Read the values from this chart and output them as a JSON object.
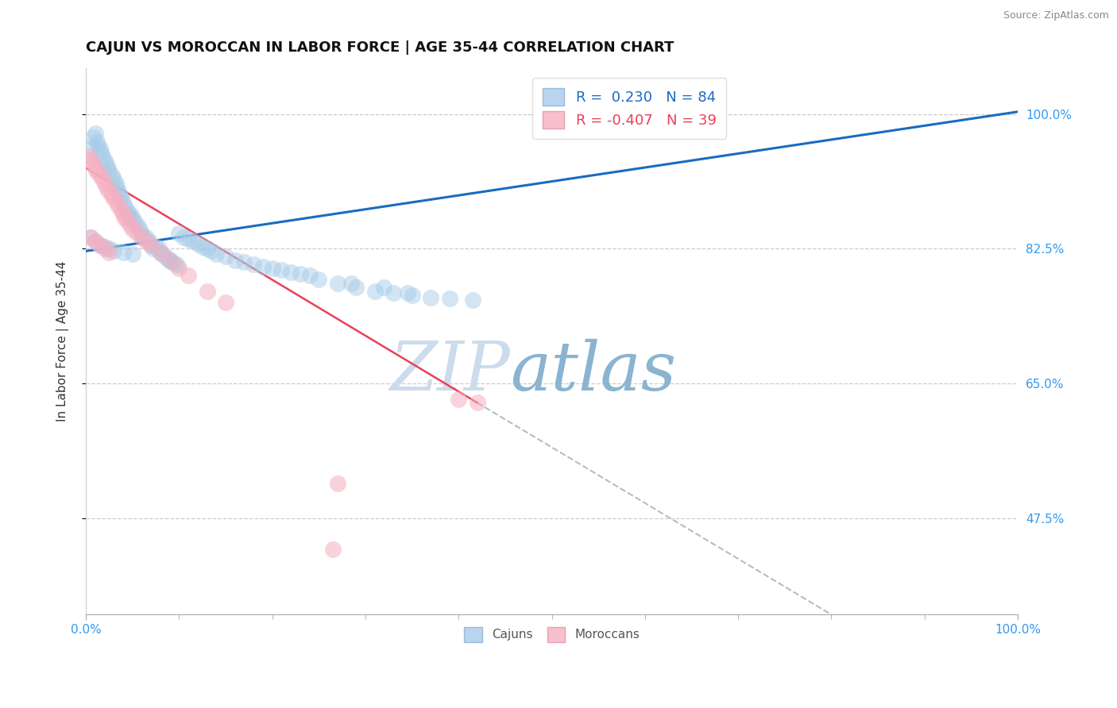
{
  "title": "CAJUN VS MOROCCAN IN LABOR FORCE | AGE 35-44 CORRELATION CHART",
  "source_text": "Source: ZipAtlas.com",
  "ylabel": "In Labor Force | Age 35-44",
  "xlim": [
    0.0,
    1.0
  ],
  "ylim": [
    0.35,
    1.06
  ],
  "yticks": [
    0.475,
    0.65,
    0.825,
    1.0
  ],
  "ytick_labels": [
    "47.5%",
    "65.0%",
    "82.5%",
    "100.0%"
  ],
  "legend_r_cajun": "0.230",
  "legend_n_cajun": "84",
  "legend_r_moroccan": "-0.407",
  "legend_n_moroccan": "39",
  "cajun_color": "#a8cce8",
  "moroccan_color": "#f5afc0",
  "cajun_line_color": "#1a6bbf",
  "moroccan_line_color": "#e8405a",
  "background_color": "#ffffff",
  "grid_color": "#cccccc",
  "title_fontsize": 13,
  "axis_label_fontsize": 11,
  "tick_label_color": "#3399ee",
  "cajun_line": [
    [
      0.0,
      0.822
    ],
    [
      1.0,
      1.003
    ]
  ],
  "moroccan_line_solid": [
    [
      0.0,
      0.93
    ],
    [
      0.42,
      0.625
    ]
  ],
  "moroccan_line_dash": [
    [
      0.42,
      0.625
    ],
    [
      1.0,
      0.205
    ]
  ],
  "cajun_x": [
    0.005,
    0.008,
    0.01,
    0.012,
    0.013,
    0.015,
    0.016,
    0.018,
    0.02,
    0.022,
    0.024,
    0.025,
    0.028,
    0.03,
    0.032,
    0.033,
    0.035,
    0.037,
    0.038,
    0.04,
    0.042,
    0.044,
    0.045,
    0.047,
    0.048,
    0.05,
    0.052,
    0.055,
    0.058,
    0.06,
    0.062,
    0.065,
    0.068,
    0.07,
    0.072,
    0.075,
    0.078,
    0.08,
    0.082,
    0.085,
    0.088,
    0.09,
    0.092,
    0.095,
    0.098,
    0.1,
    0.105,
    0.11,
    0.115,
    0.12,
    0.125,
    0.13,
    0.135,
    0.14,
    0.15,
    0.16,
    0.17,
    0.18,
    0.19,
    0.2,
    0.21,
    0.22,
    0.23,
    0.24,
    0.25,
    0.27,
    0.29,
    0.31,
    0.33,
    0.35,
    0.37,
    0.39,
    0.005,
    0.01,
    0.015,
    0.02,
    0.025,
    0.03,
    0.04,
    0.05,
    0.32,
    0.345,
    0.285,
    0.415
  ],
  "cajun_y": [
    0.955,
    0.97,
    0.975,
    0.965,
    0.96,
    0.955,
    0.95,
    0.945,
    0.94,
    0.935,
    0.93,
    0.925,
    0.92,
    0.915,
    0.91,
    0.905,
    0.9,
    0.895,
    0.89,
    0.885,
    0.88,
    0.875,
    0.87,
    0.865,
    0.87,
    0.865,
    0.86,
    0.855,
    0.85,
    0.845,
    0.84,
    0.84,
    0.835,
    0.83,
    0.825,
    0.828,
    0.825,
    0.82,
    0.818,
    0.815,
    0.812,
    0.81,
    0.808,
    0.806,
    0.804,
    0.845,
    0.84,
    0.838,
    0.835,
    0.832,
    0.828,
    0.825,
    0.822,
    0.818,
    0.815,
    0.81,
    0.808,
    0.805,
    0.802,
    0.8,
    0.798,
    0.795,
    0.792,
    0.79,
    0.785,
    0.78,
    0.775,
    0.77,
    0.768,
    0.765,
    0.762,
    0.76,
    0.84,
    0.835,
    0.83,
    0.828,
    0.825,
    0.822,
    0.82,
    0.818,
    0.775,
    0.768,
    0.78,
    0.758
  ],
  "moroccan_x": [
    0.003,
    0.005,
    0.008,
    0.01,
    0.012,
    0.015,
    0.018,
    0.02,
    0.022,
    0.025,
    0.028,
    0.03,
    0.033,
    0.035,
    0.038,
    0.04,
    0.042,
    0.045,
    0.048,
    0.05,
    0.055,
    0.06,
    0.065,
    0.07,
    0.08,
    0.09,
    0.1,
    0.11,
    0.13,
    0.15,
    0.005,
    0.01,
    0.015,
    0.02,
    0.025,
    0.27,
    0.4,
    0.42,
    0.265
  ],
  "moroccan_y": [
    0.945,
    0.94,
    0.935,
    0.93,
    0.925,
    0.92,
    0.915,
    0.91,
    0.905,
    0.9,
    0.895,
    0.89,
    0.885,
    0.88,
    0.875,
    0.87,
    0.865,
    0.86,
    0.855,
    0.85,
    0.845,
    0.84,
    0.835,
    0.83,
    0.82,
    0.81,
    0.8,
    0.79,
    0.77,
    0.755,
    0.84,
    0.835,
    0.83,
    0.825,
    0.82,
    0.52,
    0.63,
    0.625,
    0.435
  ]
}
